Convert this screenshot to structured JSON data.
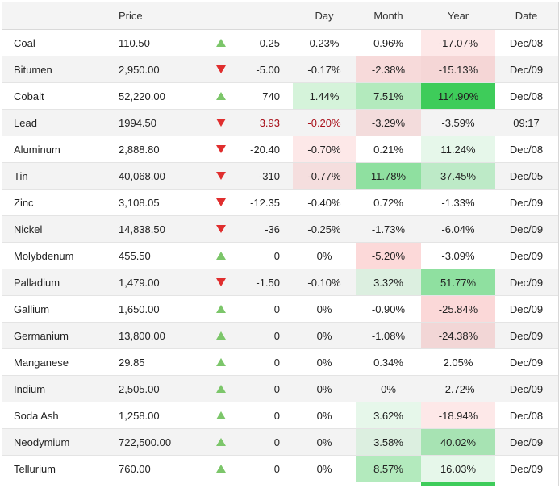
{
  "headers": {
    "name": "",
    "price": "Price",
    "change": "",
    "day": "Day",
    "month": "Month",
    "year": "Year",
    "date": "Date"
  },
  "colors": {
    "up_arrow": "#7cc66a",
    "down_arrow": "#e02e2e",
    "neg_change_text": "#a8101a"
  },
  "rows": [
    {
      "name": "Coal",
      "price": "110.50",
      "dir": "up",
      "change": "0.25",
      "day": "0.23%",
      "month": "0.96%",
      "year": "-17.07%",
      "date": "Dec/08",
      "dayBg": "",
      "monthBg": "",
      "yearBg": "#fde8e8"
    },
    {
      "name": "Bitumen",
      "price": "2,950.00",
      "dir": "down",
      "change": "-5.00",
      "day": "-0.17%",
      "month": "-2.38%",
      "year": "-15.13%",
      "date": "Dec/09",
      "dayBg": "",
      "monthBg": "#f7dada",
      "yearBg": "#f5d6d6"
    },
    {
      "name": "Cobalt",
      "price": "52,220.00",
      "dir": "up",
      "change": "740",
      "day": "1.44%",
      "month": "7.51%",
      "year": "114.90%",
      "date": "Dec/08",
      "dayBg": "#d5f3da",
      "monthBg": "#b3eabd",
      "yearBg": "#3ecc5a"
    },
    {
      "name": "Lead",
      "price": "1994.50",
      "dir": "down",
      "change": "3.93",
      "changeNeg": true,
      "day": "-0.20%",
      "dayNeg": true,
      "month": "-3.29%",
      "year": "-3.59%",
      "date": "09:17",
      "dayBg": "",
      "monthBg": "#f3dcdc",
      "yearBg": ""
    },
    {
      "name": "Aluminum",
      "price": "2,888.80",
      "dir": "down",
      "change": "-20.40",
      "day": "-0.70%",
      "month": "0.21%",
      "year": "11.24%",
      "date": "Dec/08",
      "dayBg": "#fde8e8",
      "monthBg": "",
      "yearBg": "#e6f7ea"
    },
    {
      "name": "Tin",
      "price": "40,068.00",
      "dir": "down",
      "change": "-310",
      "day": "-0.77%",
      "month": "11.78%",
      "year": "37.45%",
      "date": "Dec/05",
      "dayBg": "#f5dede",
      "monthBg": "#8fe0a0",
      "yearBg": "#bdeac7"
    },
    {
      "name": "Zinc",
      "price": "3,108.05",
      "dir": "down",
      "change": "-12.35",
      "day": "-0.40%",
      "month": "0.72%",
      "year": "-1.33%",
      "date": "Dec/09",
      "dayBg": "",
      "monthBg": "",
      "yearBg": ""
    },
    {
      "name": "Nickel",
      "price": "14,838.50",
      "dir": "down",
      "change": "-36",
      "day": "-0.25%",
      "month": "-1.73%",
      "year": "-6.04%",
      "date": "Dec/09",
      "dayBg": "",
      "monthBg": "",
      "yearBg": ""
    },
    {
      "name": "Molybdenum",
      "price": "455.50",
      "dir": "up",
      "change": "0",
      "day": "0%",
      "month": "-5.20%",
      "year": "-3.09%",
      "date": "Dec/09",
      "dayBg": "",
      "monthBg": "#fcd9d9",
      "yearBg": ""
    },
    {
      "name": "Palladium",
      "price": "1,479.00",
      "dir": "down",
      "change": "-1.50",
      "day": "-0.10%",
      "month": "3.32%",
      "year": "51.77%",
      "date": "Dec/09",
      "dayBg": "",
      "monthBg": "#dcefe0",
      "yearBg": "#8fe0a0"
    },
    {
      "name": "Gallium",
      "price": "1,650.00",
      "dir": "up",
      "change": "0",
      "day": "0%",
      "month": "-0.90%",
      "year": "-25.84%",
      "date": "Dec/09",
      "dayBg": "",
      "monthBg": "",
      "yearBg": "#fbd8d8"
    },
    {
      "name": "Germanium",
      "price": "13,800.00",
      "dir": "up",
      "change": "0",
      "day": "0%",
      "month": "-1.08%",
      "year": "-24.38%",
      "date": "Dec/09",
      "dayBg": "",
      "monthBg": "",
      "yearBg": "#f2d6d6"
    },
    {
      "name": "Manganese",
      "price": "29.85",
      "dir": "up",
      "change": "0",
      "day": "0%",
      "month": "0.34%",
      "year": "2.05%",
      "date": "Dec/09",
      "dayBg": "",
      "monthBg": "",
      "yearBg": ""
    },
    {
      "name": "Indium",
      "price": "2,505.00",
      "dir": "up",
      "change": "0",
      "day": "0%",
      "month": "0%",
      "year": "-2.72%",
      "date": "Dec/09",
      "dayBg": "",
      "monthBg": "",
      "yearBg": ""
    },
    {
      "name": "Soda Ash",
      "price": "1,258.00",
      "dir": "up",
      "change": "0",
      "day": "0%",
      "month": "3.62%",
      "year": "-18.94%",
      "date": "Dec/08",
      "dayBg": "",
      "monthBg": "#e6f7ea",
      "yearBg": "#fde8e8"
    },
    {
      "name": "Neodymium",
      "price": "722,500.00",
      "dir": "up",
      "change": "0",
      "day": "0%",
      "month": "3.58%",
      "year": "40.02%",
      "date": "Dec/09",
      "dayBg": "",
      "monthBg": "#dcefe0",
      "yearBg": "#a7e3b3"
    },
    {
      "name": "Tellurium",
      "price": "760.00",
      "dir": "up",
      "change": "0",
      "day": "0%",
      "month": "8.57%",
      "year": "16.03%",
      "date": "Dec/09",
      "dayBg": "",
      "monthBg": "#b3eabd",
      "yearBg": "#e6f7ea"
    }
  ]
}
